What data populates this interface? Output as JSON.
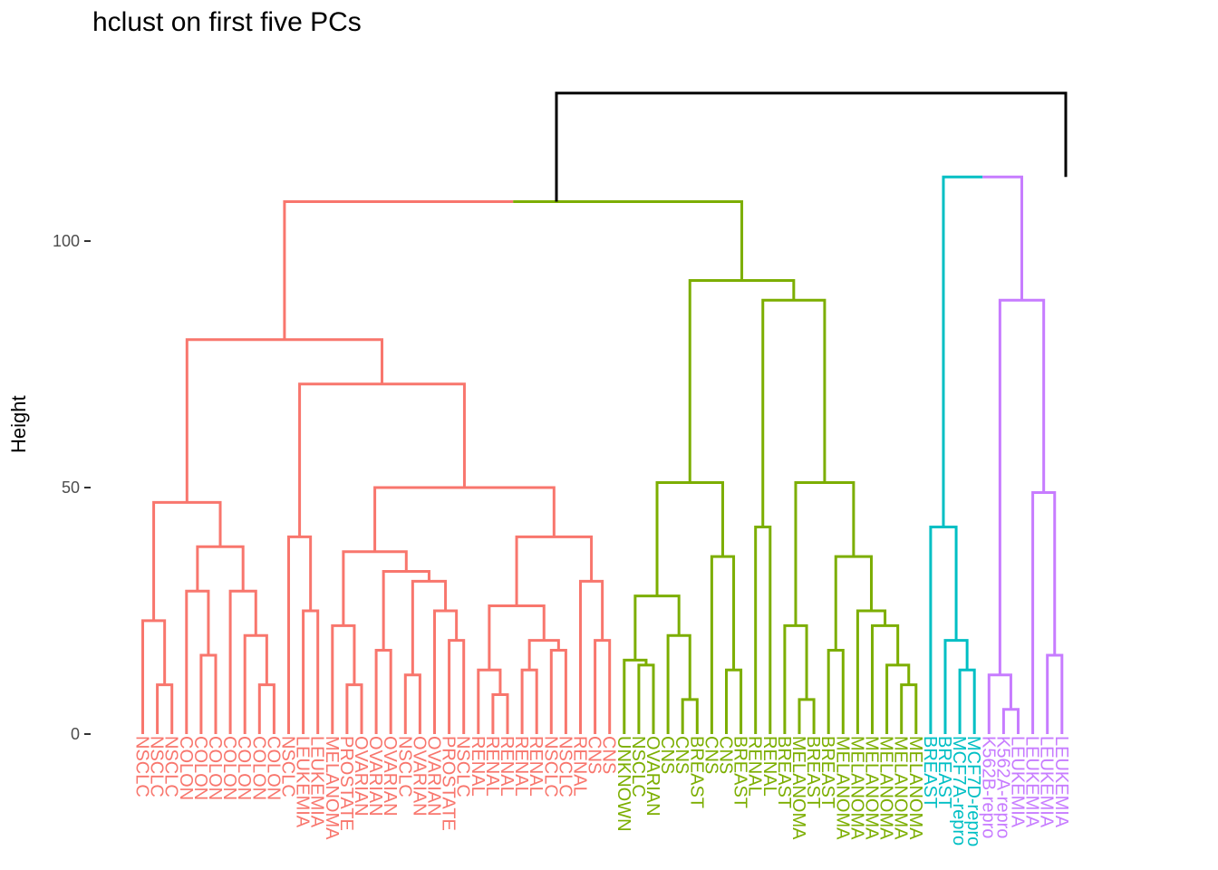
{
  "chart_data": {
    "type": "dendrogram",
    "title": "hclust on first five PCs",
    "xlabel": "",
    "ylabel": "Height",
    "ylim": [
      0,
      130
    ],
    "yticks": [
      0,
      50,
      100
    ],
    "grid": false,
    "colors": {
      "root": "#000000",
      "cluster1": "#F8766D",
      "cluster2": "#7CAE00",
      "cluster3": "#00BFC4",
      "cluster4": "#C77CFF"
    },
    "leaves": [
      {
        "label": "NSCLC",
        "cluster": 1
      },
      {
        "label": "NSCLC",
        "cluster": 1
      },
      {
        "label": "NSCLC",
        "cluster": 1
      },
      {
        "label": "COLON",
        "cluster": 1
      },
      {
        "label": "COLON",
        "cluster": 1
      },
      {
        "label": "COLON",
        "cluster": 1
      },
      {
        "label": "COLON",
        "cluster": 1
      },
      {
        "label": "COLON",
        "cluster": 1
      },
      {
        "label": "COLON",
        "cluster": 1
      },
      {
        "label": "COLON",
        "cluster": 1
      },
      {
        "label": "NSCLC",
        "cluster": 1
      },
      {
        "label": "LEUKEMIA",
        "cluster": 1
      },
      {
        "label": "LEUKEMIA",
        "cluster": 1
      },
      {
        "label": "MELANOMA",
        "cluster": 1
      },
      {
        "label": "PROSTATE",
        "cluster": 1
      },
      {
        "label": "OVARIAN",
        "cluster": 1
      },
      {
        "label": "OVARIAN",
        "cluster": 1
      },
      {
        "label": "OVARIAN",
        "cluster": 1
      },
      {
        "label": "NSCLC",
        "cluster": 1
      },
      {
        "label": "OVARIAN",
        "cluster": 1
      },
      {
        "label": "OVARIAN",
        "cluster": 1
      },
      {
        "label": "PROSTATE",
        "cluster": 1
      },
      {
        "label": "NSCLC",
        "cluster": 1
      },
      {
        "label": "RENAL",
        "cluster": 1
      },
      {
        "label": "RENAL",
        "cluster": 1
      },
      {
        "label": "RENAL",
        "cluster": 1
      },
      {
        "label": "RENAL",
        "cluster": 1
      },
      {
        "label": "RENAL",
        "cluster": 1
      },
      {
        "label": "NSCLC",
        "cluster": 1
      },
      {
        "label": "NSCLC",
        "cluster": 1
      },
      {
        "label": "RENAL",
        "cluster": 1
      },
      {
        "label": "CNS",
        "cluster": 1
      },
      {
        "label": "CNS",
        "cluster": 1
      },
      {
        "label": "UNKNOWN",
        "cluster": 2
      },
      {
        "label": "NSCLC",
        "cluster": 2
      },
      {
        "label": "OVARIAN",
        "cluster": 2
      },
      {
        "label": "CNS",
        "cluster": 2
      },
      {
        "label": "CNS",
        "cluster": 2
      },
      {
        "label": "BREAST",
        "cluster": 2
      },
      {
        "label": "CNS",
        "cluster": 2
      },
      {
        "label": "CNS",
        "cluster": 2
      },
      {
        "label": "BREAST",
        "cluster": 2
      },
      {
        "label": "RENAL",
        "cluster": 2
      },
      {
        "label": "RENAL",
        "cluster": 2
      },
      {
        "label": "BREAST",
        "cluster": 2
      },
      {
        "label": "MELANOMA",
        "cluster": 2
      },
      {
        "label": "BREAST",
        "cluster": 2
      },
      {
        "label": "BREAST",
        "cluster": 2
      },
      {
        "label": "MELANOMA",
        "cluster": 2
      },
      {
        "label": "MELANOMA",
        "cluster": 2
      },
      {
        "label": "MELANOMA",
        "cluster": 2
      },
      {
        "label": "MELANOMA",
        "cluster": 2
      },
      {
        "label": "MELANOMA",
        "cluster": 2
      },
      {
        "label": "MELANOMA",
        "cluster": 2
      },
      {
        "label": "BREAST",
        "cluster": 3
      },
      {
        "label": "BREAST",
        "cluster": 3
      },
      {
        "label": "MCF7A-repro",
        "cluster": 3
      },
      {
        "label": "MCF7D-repro",
        "cluster": 3
      },
      {
        "label": "K562B-repro",
        "cluster": 4
      },
      {
        "label": "K562A-repro",
        "cluster": 4
      },
      {
        "label": "LEUKEMIA",
        "cluster": 4
      },
      {
        "label": "LEUKEMIA",
        "cluster": 4
      },
      {
        "label": "LEUKEMIA",
        "cluster": 4
      },
      {
        "label": "LEUKEMIA",
        "cluster": 4
      }
    ],
    "merges": [
      {
        "left": 1,
        "right": 2,
        "height": 10
      },
      {
        "left": 0,
        "right": "L1-2",
        "height": 23
      },
      {
        "left": 3,
        "right": 4,
        "height": 16
      },
      {
        "left": 5,
        "right": 6,
        "height": 10
      },
      {
        "left": 7,
        "right": 8,
        "height": 12
      },
      {
        "left": 9,
        "right": 10,
        "height": 14
      },
      {
        "left": 11,
        "right": 12,
        "height": 25
      },
      {
        "left": 14,
        "right": 15,
        "height": 10
      },
      {
        "left": 17,
        "right": 18,
        "height": 12
      },
      {
        "left": 20,
        "right": 21,
        "height": 19
      },
      {
        "left": 24,
        "right": 25,
        "height": 8
      },
      {
        "left": 26,
        "right": 27,
        "height": 13
      },
      {
        "left": 31,
        "right": 32,
        "height": 10
      },
      {
        "left": 34,
        "right": 35,
        "height": 15
      },
      {
        "left": 38,
        "right": 39,
        "height": 7
      },
      {
        "left": 49,
        "right": 50,
        "height": 7
      },
      {
        "left": 56,
        "right": 57,
        "height": 13
      },
      {
        "left": 58,
        "right": 59,
        "height": 5
      },
      {
        "top_clusters": [
          "cluster1",
          "cluster2"
        ],
        "height": 108
      },
      {
        "top_clusters": [
          "cluster3",
          "cluster4"
        ],
        "height": 113
      },
      {
        "top_clusters": [
          "cluster1+2",
          "cluster3+4"
        ],
        "height": 130
      }
    ]
  }
}
